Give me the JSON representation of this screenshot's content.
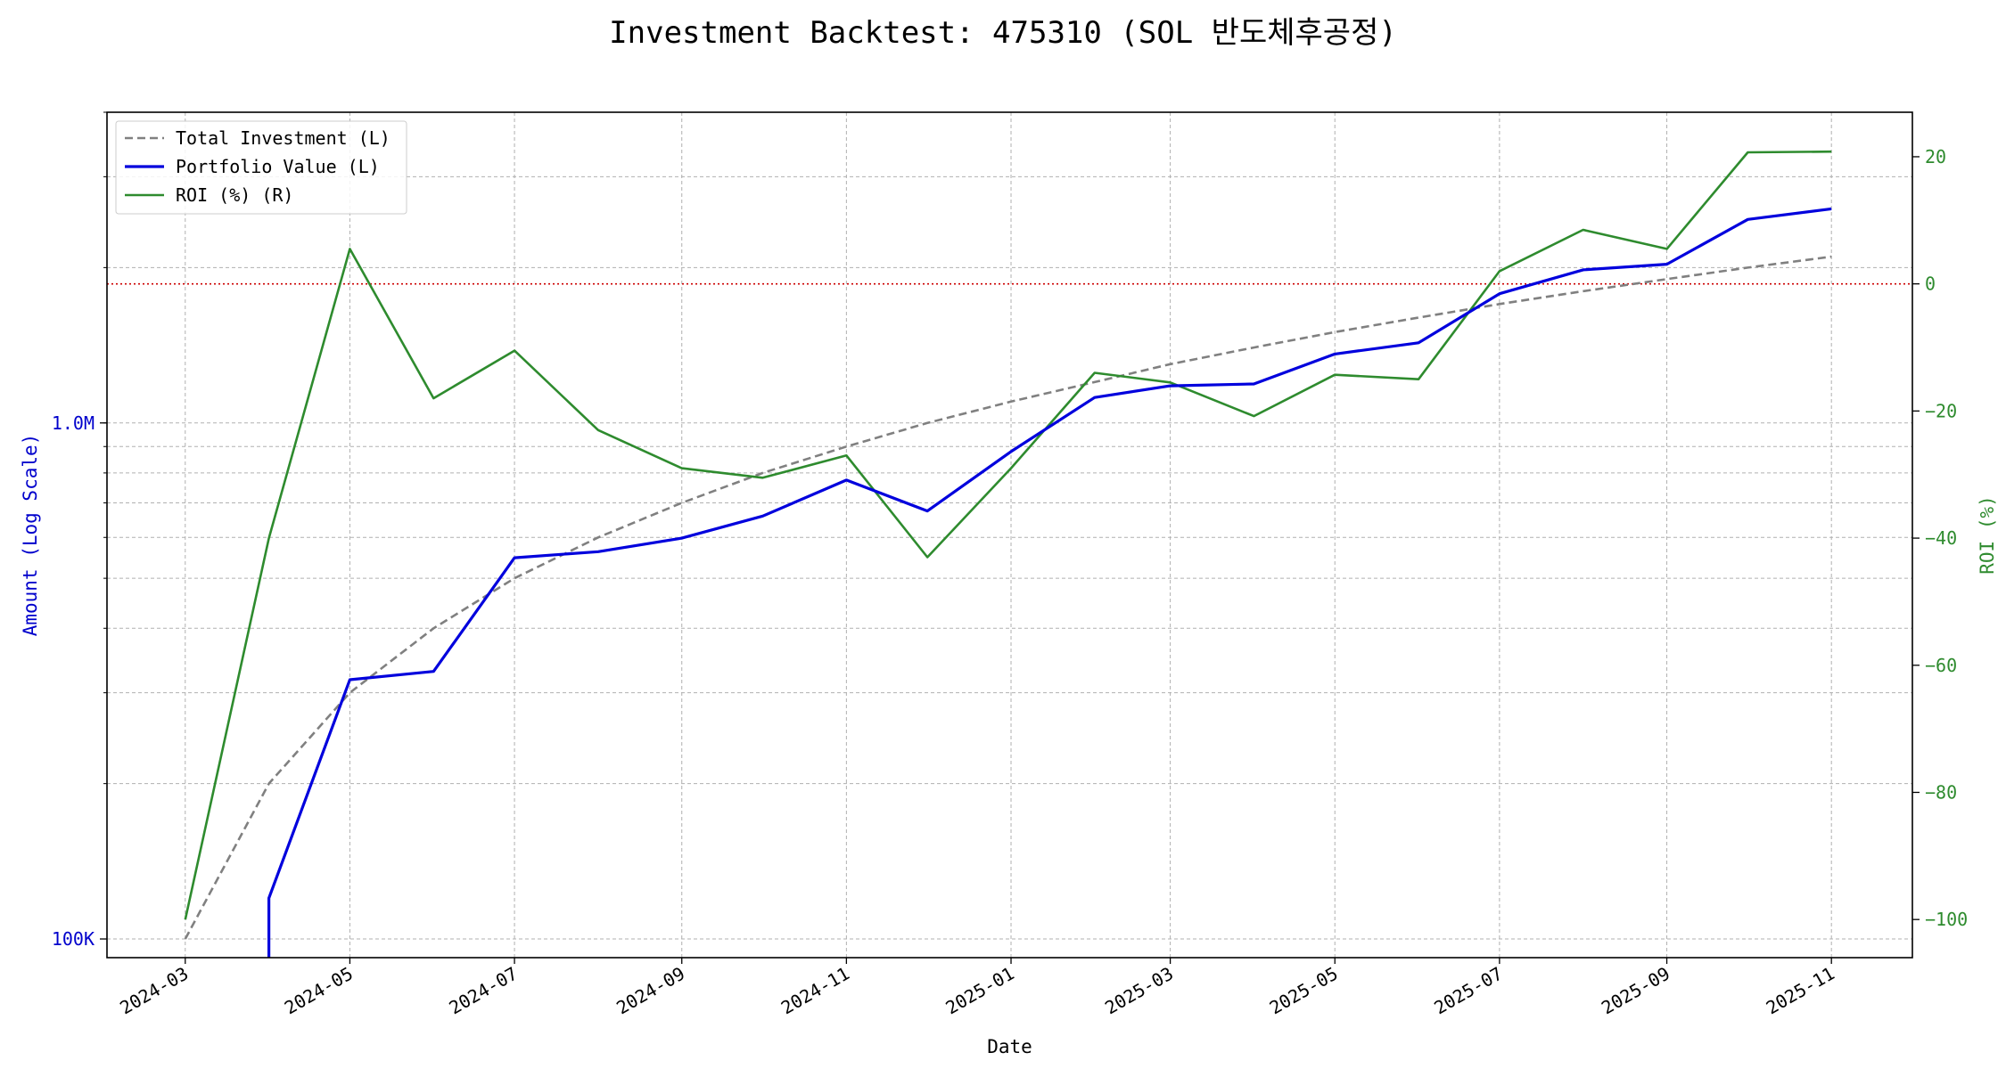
{
  "chart_data": {
    "type": "line",
    "title": "Investment Backtest: 475310 (SOL 반도체후공정)",
    "xlabel": "Date",
    "ylabel_left": "Amount (Log Scale)",
    "ylabel_right": "ROI (%)",
    "left_scale": "log",
    "left_ylim": [
      92000,
      4000000
    ],
    "right_ylim": [
      -106,
      27
    ],
    "grid": true,
    "legend_placement": "top-left",
    "roi_reference_line": 0,
    "x_tick_labels": [
      "2024-03",
      "2024-05",
      "2024-07",
      "2024-09",
      "2024-11",
      "2025-01",
      "2025-03",
      "2025-05",
      "2025-07",
      "2025-09",
      "2025-11"
    ],
    "left_tick_labels": [
      {
        "value": 100000,
        "label": "100K"
      },
      {
        "value": 1000000,
        "label": "1.0M"
      }
    ],
    "right_tick_labels": [
      -100,
      -80,
      -60,
      -40,
      -20,
      0,
      20
    ],
    "x": [
      "2024-03-01",
      "2024-04-01",
      "2024-05-01",
      "2024-06-01",
      "2024-07-01",
      "2024-08-01",
      "2024-09-01",
      "2024-10-01",
      "2024-11-01",
      "2024-12-01",
      "2025-01-01",
      "2025-02-01",
      "2025-03-01",
      "2025-04-01",
      "2025-05-01",
      "2025-06-01",
      "2025-07-01",
      "2025-08-01",
      "2025-09-01",
      "2025-10-01",
      "2025-11-01"
    ],
    "series": [
      {
        "name": "Total Investment (L)",
        "axis": "left",
        "color": "#808080",
        "style": "dashed",
        "values": [
          100000,
          200000,
          300000,
          400000,
          500000,
          600000,
          700000,
          800000,
          900000,
          1000000,
          1100000,
          1200000,
          1300000,
          1400000,
          1500000,
          1600000,
          1700000,
          1800000,
          1900000,
          2000000,
          2100000
        ]
      },
      {
        "name": "Portfolio Value (L)",
        "axis": "left",
        "color": "#0000dd",
        "style": "solid",
        "pre_value": 60000,
        "values": [
          null,
          120000,
          318000,
          330000,
          548000,
          563000,
          598000,
          660000,
          775000,
          675000,
          880000,
          1120000,
          1180000,
          1190000,
          1360000,
          1430000,
          1780000,
          1980000,
          2030000,
          2480000,
          2600000
        ]
      },
      {
        "name": "ROI (%) (R)",
        "axis": "right",
        "color": "#2e8b2e",
        "style": "solid",
        "values": [
          -100,
          -40,
          5.5,
          -18,
          -10.5,
          -23,
          -29,
          -30.5,
          -27,
          -43,
          -29,
          -14,
          -15.5,
          -20.8,
          -14.3,
          -15,
          2,
          8.5,
          5.5,
          20.7,
          20.8
        ]
      }
    ]
  }
}
